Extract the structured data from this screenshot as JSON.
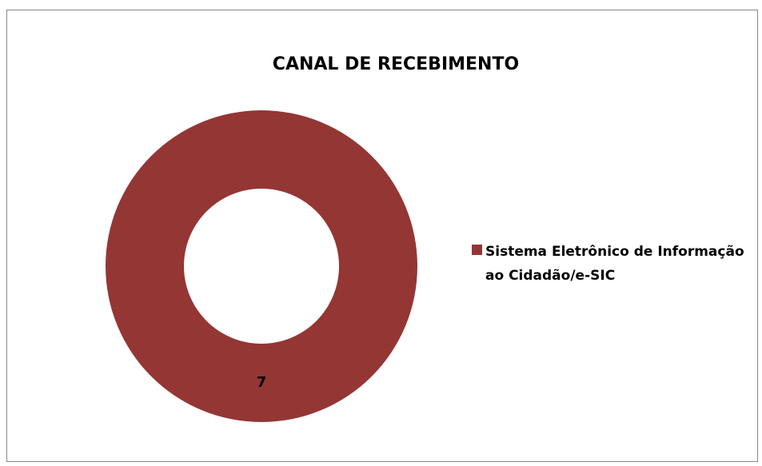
{
  "chart_data": {
    "type": "donut",
    "title": "CANAL DE RECEBIMENTO",
    "categories": [
      "Sistema Eletrônico de Informação ao Cidadão/e-SIC"
    ],
    "values": [
      7
    ],
    "colors": [
      "#943634"
    ],
    "legend": "right"
  }
}
